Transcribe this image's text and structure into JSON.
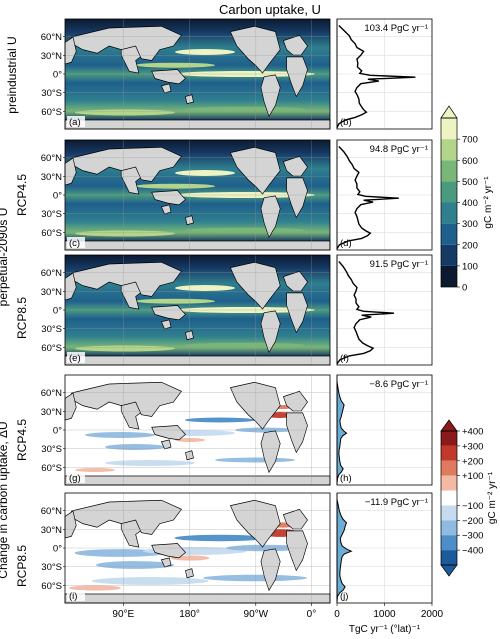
{
  "figure": {
    "title": "Carbon uptake, U",
    "row_group_labels": [
      "preindustrial U",
      "perpetual-2090s U",
      "Change in carbon uptake, ΔU"
    ],
    "row_labels": [
      "RCP4.5",
      "RCP8.5",
      "RCP4.5",
      "RCP8.5"
    ],
    "map_lat_ticks": [
      "60°N",
      "30°N",
      "0°",
      "30°S",
      "60°S"
    ],
    "map_lon_ticks": [
      "90°E",
      "180°",
      "90°W",
      "0°"
    ],
    "profile_x_ticks": [
      "0",
      "1000",
      "2000"
    ],
    "profile_x_label": "TgC yr⁻¹ (°lat)⁻¹",
    "panel_letters": [
      "(a)",
      "(b)",
      "(c)",
      "(d)",
      "(e)",
      "(f)",
      "(g)",
      "(h)",
      "(i)",
      "(j)"
    ]
  },
  "colorbars": {
    "uptake": {
      "ticks": [
        "0",
        "100",
        "200",
        "300",
        "400",
        "500",
        "600",
        "700"
      ],
      "label": "gC m⁻² yr⁻¹",
      "colors": [
        "#0c1a30",
        "#163a66",
        "#1f5f8c",
        "#2f7f8f",
        "#4a9a80",
        "#78b777",
        "#b3d58a",
        "#eef3c4"
      ]
    },
    "change": {
      "ticks": [
        "+400",
        "+300",
        "+200",
        "+100",
        "−100",
        "−200",
        "−300",
        "−400"
      ],
      "label": "gC m⁻² yr⁻¹",
      "colors": [
        "#8b1a1a",
        "#c0392b",
        "#e07a5f",
        "#f3b9a4",
        "#ffffff",
        "#c6dbef",
        "#8fbbe0",
        "#4b8ec8",
        "#1d5a9c"
      ]
    }
  },
  "chart_data": [
    {
      "type": "line",
      "panel": "b",
      "annotation": "103.4 PgC yr⁻¹",
      "x_axis": "carbon uptake (TgC yr⁻¹ (°lat)⁻¹)",
      "y_axis": "latitude",
      "xlim": [
        0,
        2000
      ],
      "ylim": [
        -80,
        90
      ],
      "points": [
        [
          0,
          -78
        ],
        [
          40,
          -72
        ],
        [
          180,
          -66
        ],
        [
          380,
          -62
        ],
        [
          520,
          -58
        ],
        [
          620,
          -54
        ],
        [
          560,
          -50
        ],
        [
          520,
          -46
        ],
        [
          470,
          -40
        ],
        [
          460,
          -34
        ],
        [
          430,
          -28
        ],
        [
          380,
          -22
        ],
        [
          420,
          -16
        ],
        [
          500,
          -10
        ],
        [
          880,
          -6
        ],
        [
          650,
          -3
        ],
        [
          1650,
          0
        ],
        [
          700,
          3
        ],
        [
          480,
          6
        ],
        [
          520,
          10
        ],
        [
          430,
          16
        ],
        [
          440,
          22
        ],
        [
          420,
          28
        ],
        [
          500,
          34
        ],
        [
          560,
          40
        ],
        [
          420,
          46
        ],
        [
          380,
          52
        ],
        [
          300,
          58
        ],
        [
          260,
          64
        ],
        [
          150,
          72
        ],
        [
          40,
          80
        ]
      ]
    },
    {
      "type": "line",
      "panel": "d",
      "annotation": "94.8 PgC yr⁻¹",
      "x_axis": "carbon uptake (TgC yr⁻¹ (°lat)⁻¹)",
      "y_axis": "latitude",
      "xlim": [
        0,
        2000
      ],
      "ylim": [
        -80,
        90
      ],
      "points": [
        [
          0,
          -78
        ],
        [
          50,
          -72
        ],
        [
          240,
          -66
        ],
        [
          520,
          -62
        ],
        [
          640,
          -58
        ],
        [
          700,
          -54
        ],
        [
          600,
          -50
        ],
        [
          520,
          -46
        ],
        [
          460,
          -40
        ],
        [
          440,
          -34
        ],
        [
          420,
          -28
        ],
        [
          380,
          -22
        ],
        [
          420,
          -16
        ],
        [
          500,
          -10
        ],
        [
          760,
          -6
        ],
        [
          560,
          -3
        ],
        [
          1300,
          0
        ],
        [
          600,
          3
        ],
        [
          440,
          6
        ],
        [
          480,
          10
        ],
        [
          420,
          16
        ],
        [
          420,
          22
        ],
        [
          380,
          28
        ],
        [
          420,
          34
        ],
        [
          460,
          40
        ],
        [
          360,
          46
        ],
        [
          320,
          52
        ],
        [
          260,
          58
        ],
        [
          220,
          64
        ],
        [
          140,
          72
        ],
        [
          40,
          80
        ]
      ]
    },
    {
      "type": "line",
      "panel": "f",
      "annotation": "91.5 PgC yr⁻¹",
      "x_axis": "carbon uptake (TgC yr⁻¹ (°lat)⁻¹)",
      "y_axis": "latitude",
      "xlim": [
        0,
        2000
      ],
      "ylim": [
        -80,
        90
      ],
      "points": [
        [
          0,
          -78
        ],
        [
          60,
          -72
        ],
        [
          260,
          -66
        ],
        [
          560,
          -62
        ],
        [
          700,
          -58
        ],
        [
          760,
          -54
        ],
        [
          640,
          -50
        ],
        [
          540,
          -46
        ],
        [
          460,
          -40
        ],
        [
          430,
          -34
        ],
        [
          400,
          -28
        ],
        [
          360,
          -22
        ],
        [
          400,
          -16
        ],
        [
          480,
          -10
        ],
        [
          720,
          -6
        ],
        [
          520,
          -3
        ],
        [
          1200,
          0
        ],
        [
          560,
          3
        ],
        [
          420,
          6
        ],
        [
          460,
          10
        ],
        [
          400,
          16
        ],
        [
          400,
          22
        ],
        [
          360,
          28
        ],
        [
          400,
          34
        ],
        [
          420,
          40
        ],
        [
          340,
          46
        ],
        [
          300,
          52
        ],
        [
          240,
          58
        ],
        [
          200,
          64
        ],
        [
          130,
          72
        ],
        [
          40,
          80
        ]
      ]
    },
    {
      "type": "area",
      "panel": "h",
      "annotation": "−8.6 PgC yr⁻¹",
      "x_axis": "change in carbon uptake (TgC yr⁻¹ (°lat)⁻¹)",
      "y_axis": "latitude",
      "xlim": [
        0,
        2000
      ],
      "ylim": [
        -80,
        90
      ],
      "points": [
        [
          0,
          -78
        ],
        [
          10,
          -70
        ],
        [
          40,
          -64
        ],
        [
          90,
          -60
        ],
        [
          130,
          -55
        ],
        [
          80,
          -50
        ],
        [
          60,
          -44
        ],
        [
          50,
          -38
        ],
        [
          40,
          -32
        ],
        [
          45,
          -26
        ],
        [
          60,
          -20
        ],
        [
          70,
          -14
        ],
        [
          80,
          -8
        ],
        [
          120,
          -4
        ],
        [
          200,
          0
        ],
        [
          150,
          3
        ],
        [
          90,
          8
        ],
        [
          70,
          14
        ],
        [
          60,
          20
        ],
        [
          90,
          26
        ],
        [
          110,
          32
        ],
        [
          130,
          38
        ],
        [
          150,
          44
        ],
        [
          90,
          50
        ],
        [
          60,
          56
        ],
        [
          40,
          62
        ],
        [
          20,
          70
        ],
        [
          0,
          80
        ]
      ]
    },
    {
      "type": "area",
      "panel": "j",
      "annotation": "−11.9 PgC yr⁻¹",
      "x_axis": "change in carbon uptake (TgC yr⁻¹ (°lat)⁻¹)",
      "y_axis": "latitude",
      "xlim": [
        0,
        2000
      ],
      "ylim": [
        -80,
        90
      ],
      "points": [
        [
          0,
          -78
        ],
        [
          10,
          -70
        ],
        [
          60,
          -64
        ],
        [
          130,
          -60
        ],
        [
          170,
          -55
        ],
        [
          110,
          -50
        ],
        [
          80,
          -44
        ],
        [
          60,
          -38
        ],
        [
          60,
          -32
        ],
        [
          70,
          -26
        ],
        [
          80,
          -20
        ],
        [
          90,
          -14
        ],
        [
          110,
          -8
        ],
        [
          160,
          -4
        ],
        [
          300,
          0
        ],
        [
          210,
          3
        ],
        [
          110,
          8
        ],
        [
          80,
          14
        ],
        [
          70,
          20
        ],
        [
          110,
          26
        ],
        [
          150,
          32
        ],
        [
          170,
          38
        ],
        [
          200,
          44
        ],
        [
          120,
          50
        ],
        [
          80,
          56
        ],
        [
          50,
          62
        ],
        [
          30,
          70
        ],
        [
          0,
          80
        ]
      ]
    }
  ]
}
